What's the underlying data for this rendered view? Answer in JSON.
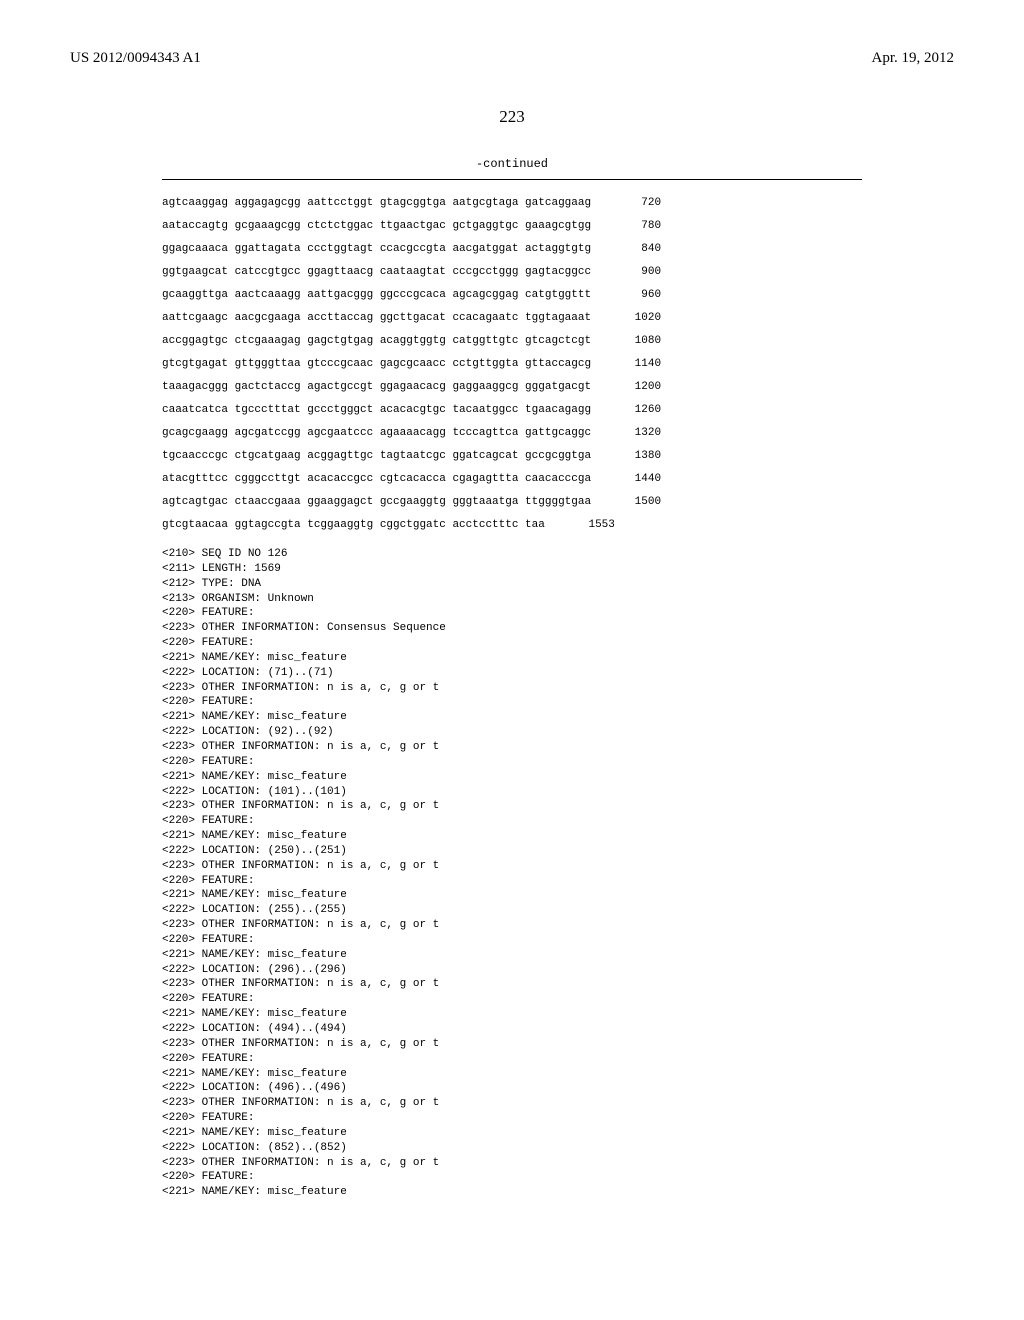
{
  "header": {
    "pub_number": "US 2012/0094343 A1",
    "pub_date": "Apr. 19, 2012"
  },
  "page_number": "223",
  "continued_label": "-continued",
  "sequence": {
    "lines": [
      {
        "text": "agtcaaggag aggagagcgg aattcctggt gtagcggtga aatgcgtaga gatcaggaag",
        "num": "720"
      },
      {
        "text": "aataccagtg gcgaaagcgg ctctctggac ttgaactgac gctgaggtgc gaaagcgtgg",
        "num": "780"
      },
      {
        "text": "ggagcaaaca ggattagata ccctggtagt ccacgccgta aacgatggat actaggtgtg",
        "num": "840"
      },
      {
        "text": "ggtgaagcat catccgtgcc ggagttaacg caataagtat cccgcctggg gagtacggcc",
        "num": "900"
      },
      {
        "text": "gcaaggttga aactcaaagg aattgacggg ggcccgcaca agcagcggag catgtggttt",
        "num": "960"
      },
      {
        "text": "aattcgaagc aacgcgaaga accttaccag ggcttgacat ccacagaatc tggtagaaat",
        "num": "1020"
      },
      {
        "text": "accggagtgc ctcgaaagag gagctgtgag acaggtggtg catggttgtc gtcagctcgt",
        "num": "1080"
      },
      {
        "text": "gtcgtgagat gttgggttaa gtcccgcaac gagcgcaacc cctgttggta gttaccagcg",
        "num": "1140"
      },
      {
        "text": "taaagacggg gactctaccg agactgccgt ggagaacacg gaggaaggcg gggatgacgt",
        "num": "1200"
      },
      {
        "text": "caaatcatca tgccctttat gccctgggct acacacgtgc tacaatggcc tgaacagagg",
        "num": "1260"
      },
      {
        "text": "gcagcgaagg agcgatccgg agcgaatccc agaaaacagg tcccagttca gattgcaggc",
        "num": "1320"
      },
      {
        "text": "tgcaacccgc ctgcatgaag acggagttgc tagtaatcgc ggatcagcat gccgcggtga",
        "num": "1380"
      },
      {
        "text": "atacgtttcc cgggccttgt acacaccgcc cgtcacacca cgagagttta caacacccga",
        "num": "1440"
      },
      {
        "text": "agtcagtgac ctaaccgaaa ggaaggagct gccgaaggtg gggtaaatga ttggggtgaa",
        "num": "1500"
      },
      {
        "text": "gtcgtaacaa ggtagccgta tcggaaggtg cggctggatc acctcctttc taa",
        "num": "1553"
      }
    ]
  },
  "features": {
    "lines": [
      "<210> SEQ ID NO 126",
      "<211> LENGTH: 1569",
      "<212> TYPE: DNA",
      "<213> ORGANISM: Unknown",
      "<220> FEATURE:",
      "<223> OTHER INFORMATION: Consensus Sequence",
      "<220> FEATURE:",
      "<221> NAME/KEY: misc_feature",
      "<222> LOCATION: (71)..(71)",
      "<223> OTHER INFORMATION: n is a, c, g or t",
      "<220> FEATURE:",
      "<221> NAME/KEY: misc_feature",
      "<222> LOCATION: (92)..(92)",
      "<223> OTHER INFORMATION: n is a, c, g or t",
      "<220> FEATURE:",
      "<221> NAME/KEY: misc_feature",
      "<222> LOCATION: (101)..(101)",
      "<223> OTHER INFORMATION: n is a, c, g or t",
      "<220> FEATURE:",
      "<221> NAME/KEY: misc_feature",
      "<222> LOCATION: (250)..(251)",
      "<223> OTHER INFORMATION: n is a, c, g or t",
      "<220> FEATURE:",
      "<221> NAME/KEY: misc_feature",
      "<222> LOCATION: (255)..(255)",
      "<223> OTHER INFORMATION: n is a, c, g or t",
      "<220> FEATURE:",
      "<221> NAME/KEY: misc_feature",
      "<222> LOCATION: (296)..(296)",
      "<223> OTHER INFORMATION: n is a, c, g or t",
      "<220> FEATURE:",
      "<221> NAME/KEY: misc_feature",
      "<222> LOCATION: (494)..(494)",
      "<223> OTHER INFORMATION: n is a, c, g or t",
      "<220> FEATURE:",
      "<221> NAME/KEY: misc_feature",
      "<222> LOCATION: (496)..(496)",
      "<223> OTHER INFORMATION: n is a, c, g or t",
      "<220> FEATURE:",
      "<221> NAME/KEY: misc_feature",
      "<222> LOCATION: (852)..(852)",
      "<223> OTHER INFORMATION: n is a, c, g or t",
      "<220> FEATURE:",
      "<221> NAME/KEY: misc_feature"
    ]
  }
}
